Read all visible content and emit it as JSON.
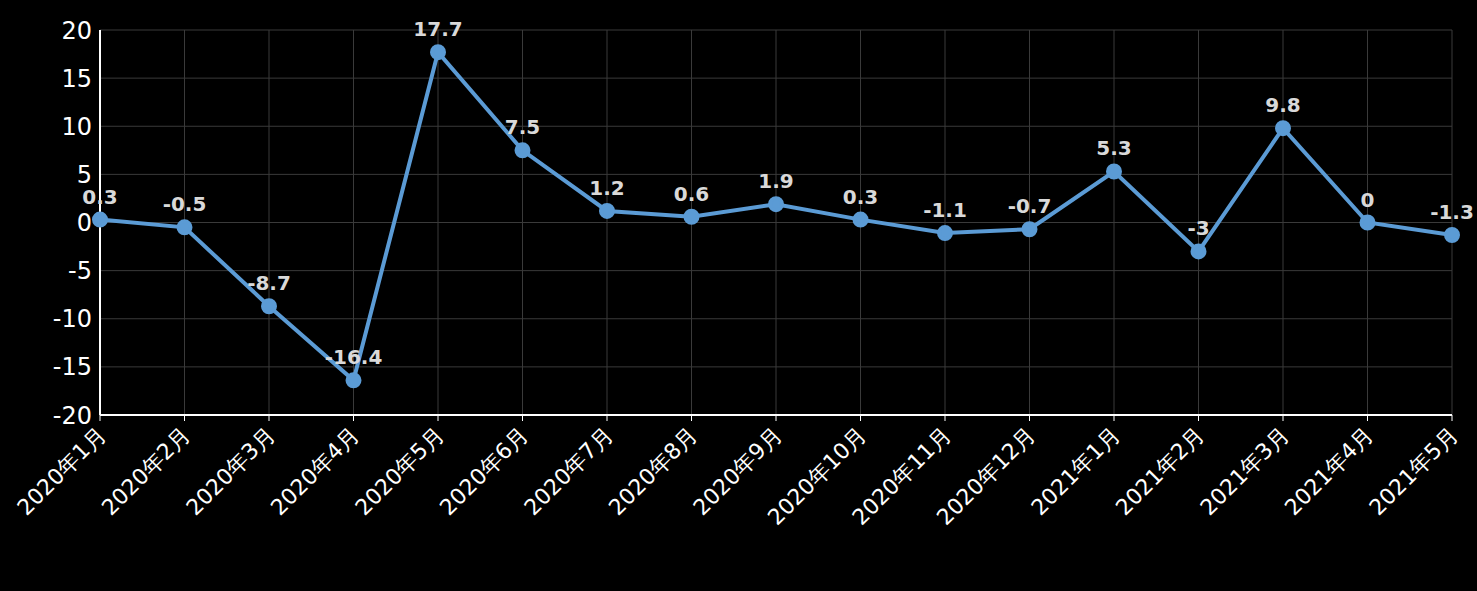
{
  "chart_data": {
    "type": "line",
    "categories": [
      "2020年1月",
      "2020年2月",
      "2020年3月",
      "2020年4月",
      "2020年5月",
      "2020年6月",
      "2020年7月",
      "2020年8月",
      "2020年9月",
      "2020年10月",
      "2020年11月",
      "2020年12月",
      "2021年1月",
      "2021年2月",
      "2021年3月",
      "2021年4月",
      "2021年5月"
    ],
    "values": [
      0.3,
      -0.5,
      -8.7,
      -16.4,
      17.7,
      7.5,
      1.2,
      0.6,
      1.9,
      0.3,
      -1.1,
      -0.7,
      5.3,
      -3,
      9.8,
      0,
      -1.3
    ],
    "color": "#5b9bd5",
    "ylim": [
      -20,
      20
    ],
    "yticks": [
      -20,
      -15,
      -10,
      -5,
      0,
      5,
      10,
      15,
      20
    ],
    "grid": true,
    "data_labels": true,
    "marker": "circle"
  }
}
